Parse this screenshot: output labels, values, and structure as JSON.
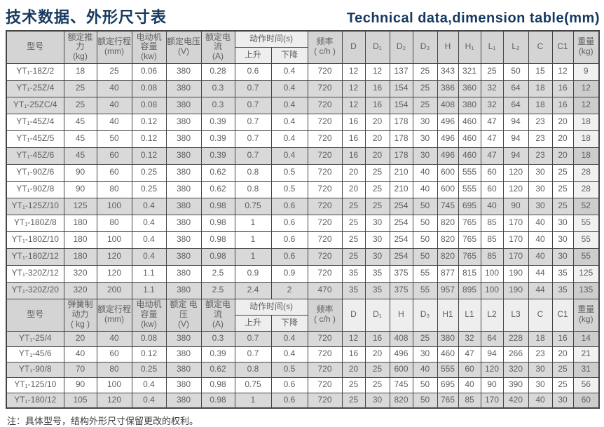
{
  "page": {
    "title_zh": "技术数据、外形尺寸表",
    "title_en": "Technical data,dimension table(mm)",
    "note": "注：具体型号，结构外形尺寸保留更改的权利。"
  },
  "colors": {
    "title": "#17395f",
    "border": "#454545",
    "header_bg": "#d4d4d4",
    "header_light": "#eeeeee",
    "row_shaded": "#d9d9d9",
    "text": "#5f5f5f"
  },
  "table1": {
    "headers": {
      "model": "型号",
      "force": "额定推力\n(kg)",
      "stroke": "额定行程\n(mm)",
      "motor": "电动机\n容量\n(kw)",
      "voltage": "额定电压\n(V)",
      "current": "额定电流\n(A)",
      "action_time": "动作时间(s)",
      "up": "上升",
      "down": "下降",
      "frequency": "频率\n( c/h )",
      "dims": [
        "D",
        "D₁",
        "D₂",
        "D₃",
        "H",
        "H₁",
        "L₁",
        "L₂",
        "C",
        "C1"
      ],
      "weight": "重量\n(kg)"
    },
    "rows": [
      {
        "shaded": false,
        "cells": [
          "YT₁-18Z/2",
          "18",
          "25",
          "0.06",
          "380",
          "0.28",
          "0.6",
          "0.4",
          "720",
          "12",
          "12",
          "137",
          "25",
          "343",
          "321",
          "25",
          "50",
          "15",
          "12",
          "9"
        ]
      },
      {
        "shaded": true,
        "cells": [
          "YT₁-25Z/4",
          "25",
          "40",
          "0.08",
          "380",
          "0.3",
          "0.7",
          "0.4",
          "720",
          "12",
          "16",
          "154",
          "25",
          "386",
          "360",
          "32",
          "64",
          "18",
          "16",
          "12"
        ]
      },
      {
        "shaded": true,
        "cells": [
          "YT₁-25ZC/4",
          "25",
          "40",
          "0.08",
          "380",
          "0.3",
          "0.7",
          "0.4",
          "720",
          "12",
          "16",
          "154",
          "25",
          "408",
          "380",
          "32",
          "64",
          "18",
          "16",
          "12"
        ]
      },
      {
        "shaded": false,
        "cells": [
          "YT₁-45Z/4",
          "45",
          "40",
          "0.12",
          "380",
          "0.39",
          "0.7",
          "0.4",
          "720",
          "16",
          "20",
          "178",
          "30",
          "496",
          "460",
          "47",
          "94",
          "23",
          "20",
          "18"
        ]
      },
      {
        "shaded": false,
        "cells": [
          "YT₁-45Z/5",
          "45",
          "50",
          "0.12",
          "380",
          "0.39",
          "0.7",
          "0.4",
          "720",
          "16",
          "20",
          "178",
          "30",
          "496",
          "460",
          "47",
          "94",
          "23",
          "20",
          "18"
        ]
      },
      {
        "shaded": true,
        "cells": [
          "YT₁-45Z/6",
          "45",
          "60",
          "0.12",
          "380",
          "0.39",
          "0.7",
          "0.4",
          "720",
          "16",
          "20",
          "178",
          "30",
          "496",
          "460",
          "47",
          "94",
          "23",
          "20",
          "18"
        ]
      },
      {
        "shaded": false,
        "cells": [
          "YT₁-90Z/6",
          "90",
          "60",
          "0.25",
          "380",
          "0.62",
          "0.8",
          "0.5",
          "720",
          "20",
          "25",
          "210",
          "40",
          "600",
          "555",
          "60",
          "120",
          "30",
          "25",
          "28"
        ]
      },
      {
        "shaded": false,
        "cells": [
          "YT₁-90Z/8",
          "90",
          "80",
          "0.25",
          "380",
          "0.62",
          "0.8",
          "0.5",
          "720",
          "20",
          "25",
          "210",
          "40",
          "600",
          "555",
          "60",
          "120",
          "30",
          "25",
          "28"
        ]
      },
      {
        "shaded": true,
        "cells": [
          "YT₁-125Z/10",
          "125",
          "100",
          "0.4",
          "380",
          "0.98",
          "0.75",
          "0.6",
          "720",
          "25",
          "25",
          "254",
          "50",
          "745",
          "695",
          "40",
          "90",
          "30",
          "25",
          "52"
        ]
      },
      {
        "shaded": false,
        "cells": [
          "YT₁-180Z/8",
          "180",
          "80",
          "0.4",
          "380",
          "0.98",
          "1",
          "0.6",
          "720",
          "25",
          "30",
          "254",
          "50",
          "820",
          "765",
          "85",
          "170",
          "40",
          "30",
          "55"
        ]
      },
      {
        "shaded": false,
        "cells": [
          "YT₁-180Z/10",
          "180",
          "100",
          "0.4",
          "380",
          "0.98",
          "1",
          "0.6",
          "720",
          "25",
          "30",
          "254",
          "50",
          "820",
          "765",
          "85",
          "170",
          "40",
          "30",
          "55"
        ]
      },
      {
        "shaded": true,
        "cells": [
          "YT₁-180Z/12",
          "180",
          "120",
          "0.4",
          "380",
          "0.98",
          "1",
          "0.6",
          "720",
          "25",
          "30",
          "254",
          "50",
          "820",
          "765",
          "85",
          "170",
          "40",
          "30",
          "55"
        ]
      },
      {
        "shaded": false,
        "cells": [
          "YT₁-320Z/12",
          "320",
          "120",
          "1.1",
          "380",
          "2.5",
          "0.9",
          "0.9",
          "720",
          "35",
          "35",
          "375",
          "55",
          "877",
          "815",
          "100",
          "190",
          "44",
          "35",
          "125"
        ]
      },
      {
        "shaded": true,
        "cells": [
          "YT₁-320Z/20",
          "320",
          "200",
          "1.1",
          "380",
          "2.5",
          "2.4",
          "2",
          "470",
          "35",
          "35",
          "375",
          "55",
          "957",
          "895",
          "100",
          "190",
          "44",
          "35",
          "135"
        ]
      }
    ]
  },
  "table2": {
    "headers": {
      "model": "型号",
      "force": "弹簧制\n动力\n( kg )",
      "stroke": "额定行程\n(mm)",
      "motor": "电动机\n容量\n(kw)",
      "voltage": "额定 电压\n(V)",
      "current": "额定电流\n(A)",
      "action_time": "动作时间(s)",
      "up": "上升",
      "down": "下降",
      "frequency": "频率\n( c/h )",
      "dims": [
        "D",
        "D₁",
        "H",
        "D₃",
        "H1",
        "L1",
        "L2",
        "L3",
        "C",
        "C1"
      ],
      "weight": "重量\n(kg)"
    },
    "rows": [
      {
        "shaded": true,
        "cells": [
          "YT₁-25/4",
          "20",
          "40",
          "0.08",
          "380",
          "0.3",
          "0.7",
          "0.4",
          "720",
          "12",
          "16",
          "408",
          "25",
          "380",
          "32",
          "64",
          "228",
          "18",
          "16",
          "14"
        ]
      },
      {
        "shaded": false,
        "cells": [
          "YT₁-45/6",
          "40",
          "60",
          "0.12",
          "380",
          "0.39",
          "0.7",
          "0.4",
          "720",
          "16",
          "20",
          "496",
          "30",
          "460",
          "47",
          "94",
          "266",
          "23",
          "20",
          "21"
        ]
      },
      {
        "shaded": true,
        "cells": [
          "YT₁-90/8",
          "70",
          "80",
          "0.25",
          "380",
          "0.62",
          "0.8",
          "0.5",
          "720",
          "20",
          "25",
          "600",
          "40",
          "555",
          "60",
          "120",
          "320",
          "30",
          "25",
          "31"
        ]
      },
      {
        "shaded": false,
        "cells": [
          "YT₁-125/10",
          "90",
          "100",
          "0.4",
          "380",
          "0.98",
          "0.75",
          "0.6",
          "720",
          "25",
          "25",
          "745",
          "50",
          "695",
          "40",
          "90",
          "390",
          "30",
          "25",
          "56"
        ]
      },
      {
        "shaded": true,
        "cells": [
          "YT₁-180/12",
          "105",
          "120",
          "0.4",
          "380",
          "0.98",
          "1",
          "0.6",
          "720",
          "25",
          "30",
          "820",
          "50",
          "765",
          "85",
          "170",
          "420",
          "40",
          "30",
          "60"
        ]
      }
    ]
  }
}
